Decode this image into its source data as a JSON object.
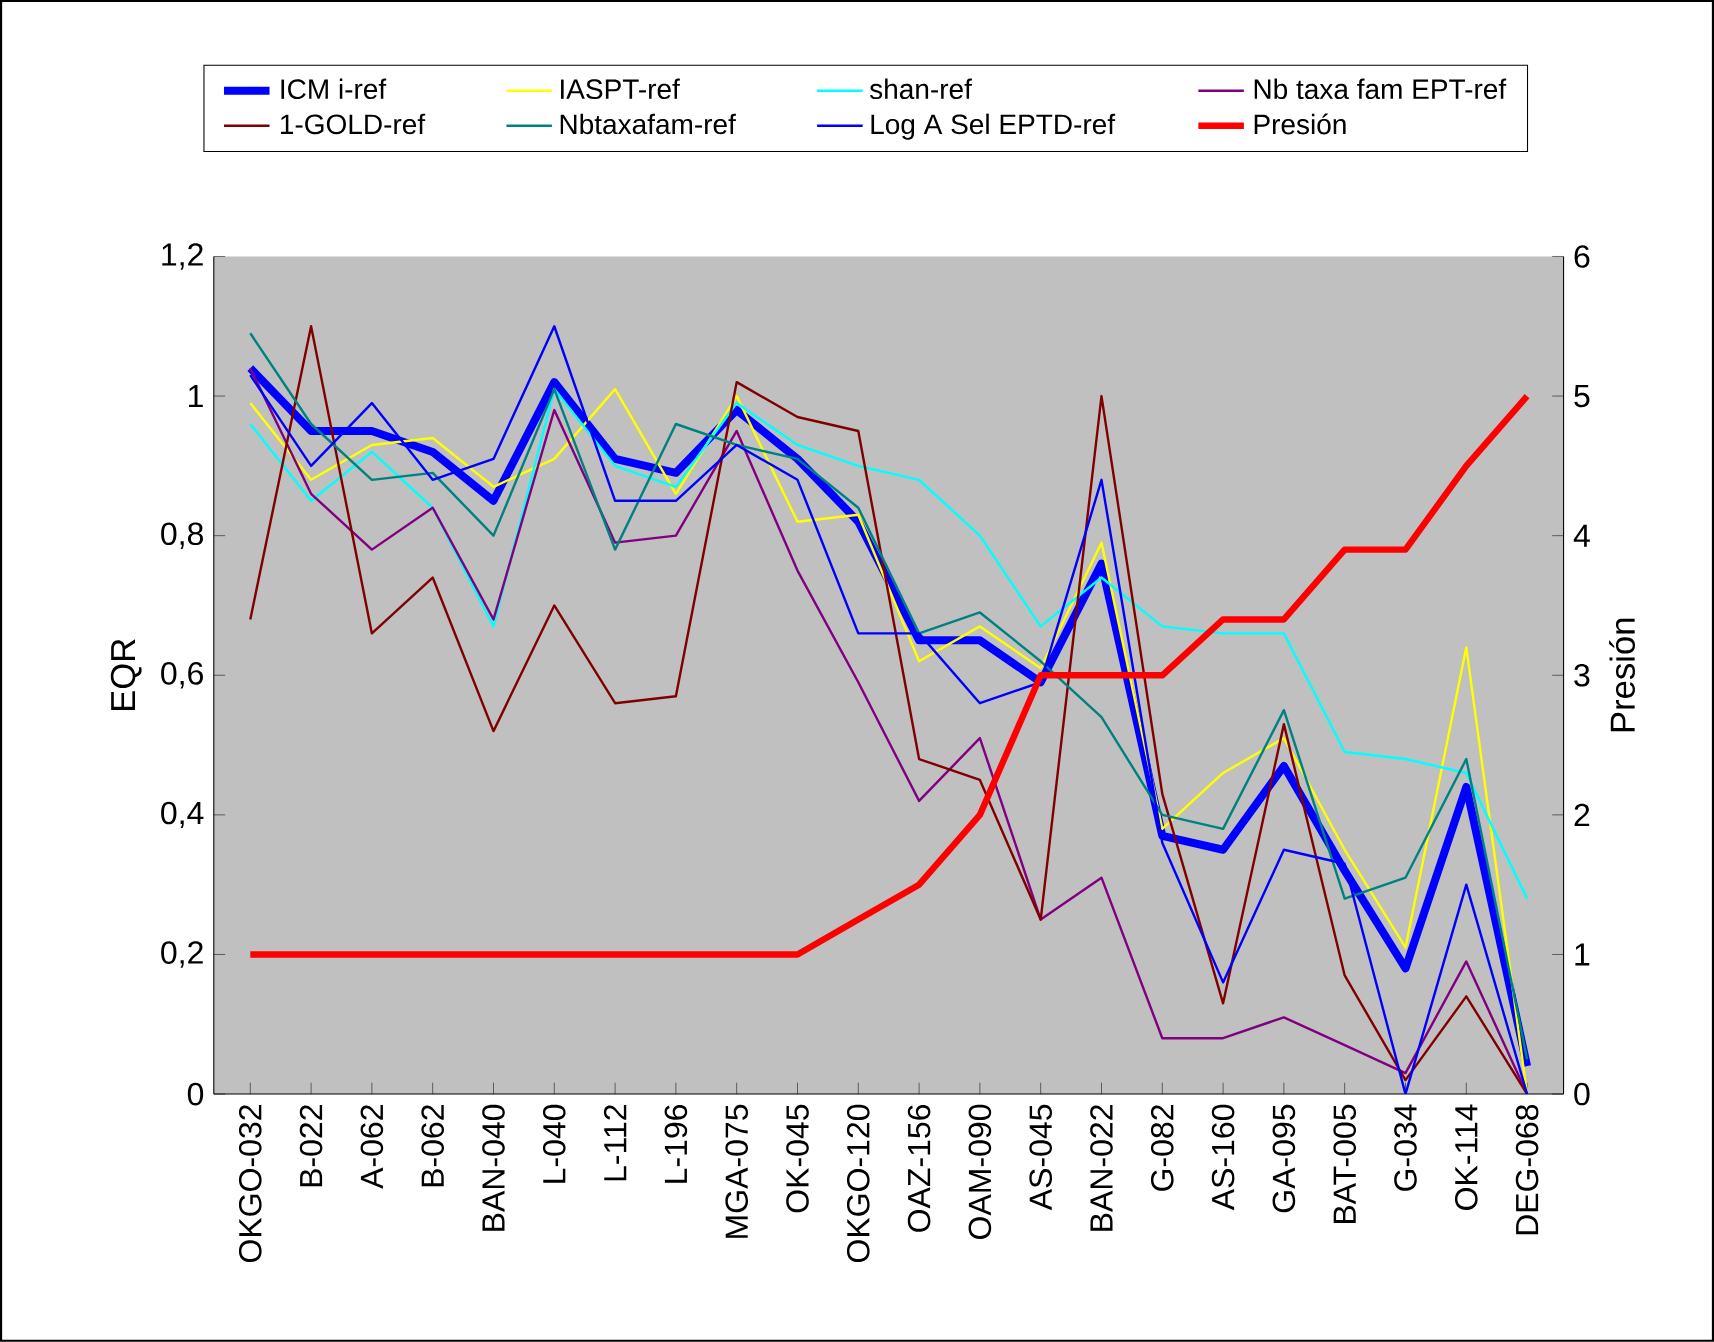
{
  "chart_data": {
    "type": "line",
    "ylabel": "EQR",
    "y2label": "Presión",
    "legend": "top",
    "categories": [
      "OKGO-032",
      "B-022",
      "A-062",
      "B-062",
      "BAN-040",
      "L-040",
      "L-112",
      "L-196",
      "MGA-075",
      "OK-045",
      "OKGO-120",
      "OAZ-156",
      "OAM-090",
      "AS-045",
      "BAN-022",
      "G-082",
      "AS-160",
      "GA-095",
      "BAT-005",
      "G-034",
      "OK-114",
      "DEG-068"
    ],
    "ylim": [
      0,
      1.2
    ],
    "yticks": [
      0,
      {
        "value": 0.2,
        "label": "0,2"
      },
      {
        "value": 0.4,
        "label": "0,4"
      },
      {
        "value": 0.6,
        "label": "0,6"
      },
      {
        "value": 0.8,
        "label": "0,8"
      },
      1,
      {
        "value": 1.2,
        "label": "1,2"
      }
    ],
    "y2lim": [
      0,
      6
    ],
    "y2ticks": [
      0,
      1,
      2,
      3,
      4,
      5,
      6
    ],
    "series": [
      {
        "name": "ICM i-ref",
        "color": "#0000ff",
        "values": [
          1.04,
          0.95,
          0.95,
          0.92,
          0.85,
          1.02,
          0.91,
          0.89,
          0.98,
          0.91,
          0.82,
          0.65,
          0.65,
          0.59,
          0.76,
          0.37,
          0.35,
          0.47,
          0.32,
          0.18,
          0.44,
          0.04
        ]
      },
      {
        "name": "IASPT-ref",
        "color": "#ffff00",
        "values": [
          0.99,
          0.88,
          0.93,
          0.94,
          0.87,
          0.91,
          1.01,
          0.86,
          1.0,
          0.82,
          0.83,
          0.62,
          0.67,
          0.61,
          0.79,
          0.38,
          0.46,
          0.51,
          0.35,
          0.21,
          0.64,
          0.0
        ]
      },
      {
        "name": "shan-ref",
        "color": "#00ffff",
        "values": [
          0.96,
          0.85,
          0.92,
          0.84,
          0.67,
          1.01,
          0.9,
          0.87,
          0.99,
          0.93,
          0.9,
          0.88,
          0.8,
          0.67,
          0.74,
          0.67,
          0.66,
          0.66,
          0.49,
          0.48,
          0.46,
          0.28
        ]
      },
      {
        "name": "Nb taxa fam EPT-ref",
        "color": "#800080",
        "values": [
          1.04,
          0.86,
          0.78,
          0.84,
          0.68,
          0.98,
          0.79,
          0.8,
          0.95,
          0.75,
          0.59,
          0.42,
          0.51,
          0.25,
          0.31,
          0.08,
          0.08,
          0.11,
          0.07,
          0.03,
          0.19,
          0.0
        ]
      },
      {
        "name": "1-GOLD-ref",
        "color": "#800000",
        "values": [
          0.68,
          1.1,
          0.66,
          0.74,
          0.52,
          0.7,
          0.56,
          0.57,
          1.02,
          0.97,
          0.95,
          0.48,
          0.45,
          0.25,
          1.0,
          0.43,
          0.13,
          0.53,
          0.17,
          0.02,
          0.14,
          0.0
        ]
      },
      {
        "name": "Nbtaxafam-ref",
        "color": "#008080",
        "values": [
          1.09,
          0.96,
          0.88,
          0.89,
          0.8,
          1.01,
          0.78,
          0.96,
          0.93,
          0.91,
          0.84,
          0.66,
          0.69,
          0.62,
          0.54,
          0.4,
          0.38,
          0.55,
          0.28,
          0.31,
          0.48,
          0.05
        ]
      },
      {
        "name": "Log A Sel EPTD-ref",
        "color": "#0000ff",
        "values": [
          1.03,
          0.9,
          0.99,
          0.88,
          0.91,
          1.1,
          0.85,
          0.85,
          0.93,
          0.88,
          0.66,
          0.66,
          0.56,
          0.59,
          0.88,
          0.36,
          0.16,
          0.35,
          0.33,
          0.0,
          0.3,
          0.0
        ]
      },
      {
        "name": "Presión",
        "color": "#ff0000",
        "axis": "y2",
        "values": [
          1,
          1,
          1,
          1,
          1,
          1,
          1,
          1,
          1,
          1,
          1.25,
          1.5,
          2.0,
          3.0,
          3.0,
          3.0,
          3.4,
          3.4,
          3.9,
          3.9,
          4.5,
          5.0
        ]
      }
    ]
  }
}
